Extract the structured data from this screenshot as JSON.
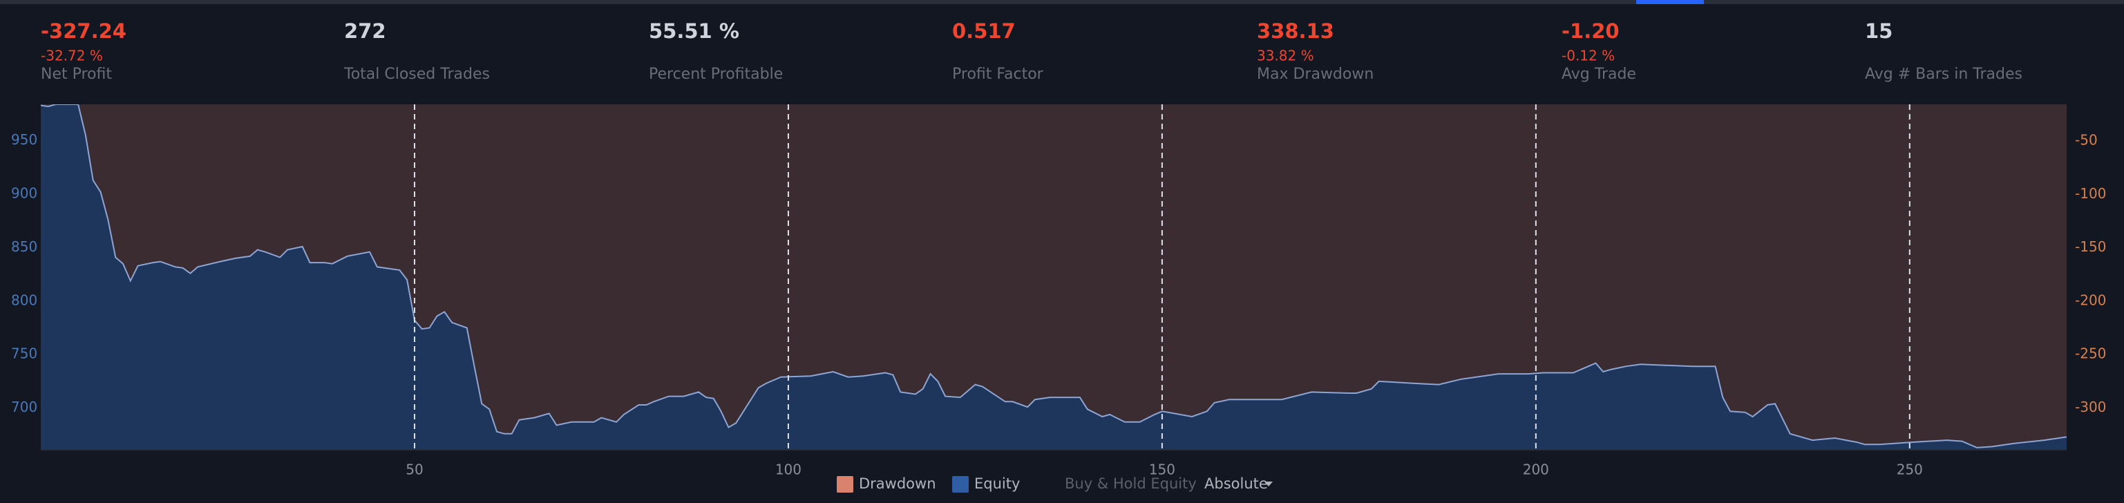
{
  "stats": [
    {
      "value": "-327.24",
      "sub": "-32.72 %",
      "label": "Net Profit",
      "color": "#f0462f"
    },
    {
      "value": "272",
      "label": "Total Closed Trades",
      "color": "#d1d4dc"
    },
    {
      "value": "55.51 %",
      "label": "Percent Profitable",
      "color": "#d1d4dc"
    },
    {
      "value": "0.517",
      "label": "Profit Factor",
      "color": "#f0462f"
    },
    {
      "value": "338.13",
      "sub": "33.82 %",
      "label": "Max Drawdown",
      "color": "#f0462f"
    },
    {
      "value": "-1.20",
      "sub": "-0.12 %",
      "label": "Avg Trade",
      "color": "#f0462f"
    },
    {
      "value": "15",
      "label": "Avg # Bars in Trades",
      "color": "#d1d4dc"
    }
  ],
  "chart_data": {
    "type": "area",
    "x": [
      0,
      1,
      2,
      5,
      6,
      7,
      8,
      9,
      10,
      11,
      12,
      13,
      15,
      16,
      18,
      19,
      20,
      21,
      24,
      26,
      28,
      29,
      30,
      32,
      33,
      35,
      36,
      38,
      39,
      41,
      44,
      45,
      48,
      49,
      50,
      51,
      52,
      53,
      54,
      55,
      57,
      58,
      59,
      60,
      61,
      62,
      63,
      64,
      66,
      68,
      69,
      71,
      74,
      75,
      76,
      77,
      78,
      80,
      81,
      82,
      84,
      86,
      88,
      89,
      90,
      91,
      92,
      93,
      94,
      96,
      97,
      99,
      103,
      106,
      108,
      110,
      113,
      114,
      115,
      117,
      118,
      119,
      120,
      121,
      123,
      125,
      126,
      129,
      130,
      132,
      133,
      135,
      139,
      140,
      142,
      143,
      145,
      147,
      149,
      150,
      154,
      156,
      157,
      159,
      166,
      170,
      175,
      176,
      178,
      179,
      184,
      187,
      190,
      192,
      195,
      199,
      201,
      205,
      208,
      209,
      210,
      212,
      214,
      221,
      224,
      225,
      226,
      228,
      229,
      231,
      232,
      234,
      237,
      240,
      243,
      244,
      246,
      250,
      255,
      257,
      259,
      261,
      264,
      268,
      271
    ],
    "series": [
      {
        "name": "Drawdown",
        "color": "#d9826e",
        "axis": "y2",
        "values": [
          -17,
          -18,
          -16,
          -16,
          -45,
          -87,
          -98,
          -124,
          -159,
          -165,
          -181,
          -167,
          -164,
          -163,
          -168,
          -169,
          -174,
          -168,
          -163,
          -160,
          -158,
          -152,
          -154,
          -159,
          -152,
          -149,
          -164,
          -164,
          -165,
          -158,
          -154,
          -168,
          -171,
          -180,
          -218,
          -226,
          -225,
          -214,
          -210,
          -220,
          -225,
          -261,
          -296,
          -301,
          -322,
          -324,
          -324,
          -311,
          -309,
          -305,
          -316,
          -313,
          -313,
          -309,
          -311,
          -313,
          -306,
          -297,
          -297,
          -294,
          -289,
          -289,
          -285,
          -290,
          -291,
          -303,
          -318,
          -314,
          -303,
          -281,
          -277,
          -271,
          -270,
          -266,
          -271,
          -270,
          -267,
          -269,
          -285,
          -287,
          -282,
          -268,
          -275,
          -289,
          -290,
          -278,
          -280,
          -294,
          -294,
          -299,
          -292,
          -290,
          -290,
          -301,
          -308,
          -306,
          -313,
          -313,
          -306,
          -303,
          -308,
          -303,
          -295,
          -292,
          -292,
          -285,
          -286,
          -286,
          -282,
          -275,
          -277,
          -278,
          -273,
          -271,
          -268,
          -268,
          -267,
          -267,
          -258,
          -266,
          -264,
          -261,
          -259,
          -261,
          -261,
          -290,
          -303,
          -304,
          -308,
          -297,
          -296,
          -324,
          -330,
          -328,
          -332,
          -334,
          -334,
          -332,
          -330,
          -331,
          -337,
          -336,
          -333,
          -330,
          -327
        ]
      },
      {
        "name": "Equity",
        "color": "#2f5ea5",
        "axis": "y",
        "values": [
          983,
          982,
          984,
          984,
          955,
          913,
          902,
          876,
          841,
          835,
          819,
          833,
          836,
          837,
          832,
          831,
          826,
          832,
          837,
          840,
          842,
          848,
          846,
          841,
          848,
          851,
          836,
          836,
          835,
          842,
          846,
          832,
          829,
          820,
          782,
          774,
          775,
          786,
          790,
          780,
          775,
          739,
          704,
          699,
          678,
          676,
          676,
          689,
          691,
          695,
          684,
          687,
          687,
          691,
          689,
          687,
          694,
          703,
          703,
          706,
          711,
          711,
          715,
          710,
          709,
          697,
          682,
          686,
          697,
          719,
          723,
          729,
          730,
          734,
          729,
          730,
          733,
          731,
          715,
          713,
          718,
          732,
          725,
          711,
          710,
          722,
          720,
          706,
          706,
          701,
          708,
          710,
          710,
          699,
          692,
          694,
          687,
          687,
          694,
          697,
          692,
          697,
          705,
          708,
          708,
          715,
          714,
          714,
          718,
          725,
          723,
          722,
          727,
          729,
          732,
          732,
          733,
          733,
          742,
          734,
          736,
          739,
          741,
          739,
          739,
          710,
          697,
          696,
          692,
          703,
          704,
          676,
          670,
          672,
          668,
          666,
          666,
          668,
          670,
          669,
          663,
          664,
          667,
          670,
          673
        ]
      }
    ],
    "xlim": [
      0,
      271
    ],
    "xticks": [
      50,
      100,
      150,
      200,
      250
    ],
    "ylim": [
      661,
      984
    ],
    "yticks": [
      700,
      750,
      800,
      850,
      900,
      950
    ],
    "y2lim": [
      -339.3,
      -15.7
    ],
    "y2ticks": [
      -50,
      -100,
      -150,
      -200,
      -250,
      -300
    ],
    "grid": true
  },
  "controls": {
    "buy_hold": "Buy & Hold Equity",
    "mode": "Absolute"
  }
}
